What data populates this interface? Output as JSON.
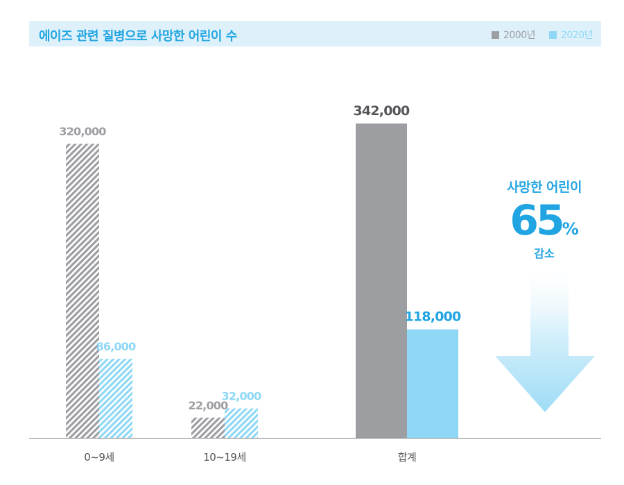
{
  "title": "에이즈 관련 질병으로 사망한 어린이 수",
  "legend": [
    {
      "label": "2000년",
      "color": "#9d9ea2"
    },
    {
      "label": "2020년",
      "color": "#8fd8f5"
    }
  ],
  "callout": {
    "line1": "사망한 어린이",
    "value": "65",
    "unit": "%",
    "line3": "감소"
  },
  "chart_data": {
    "type": "bar",
    "categories": [
      "0~9세",
      "10~19세",
      "합계"
    ],
    "series": [
      {
        "name": "2000년",
        "values": [
          320000,
          22000,
          342000
        ],
        "labels": [
          "320,000",
          "22,000",
          "342,000"
        ],
        "color": "#9d9ea2"
      },
      {
        "name": "2020년",
        "values": [
          86000,
          32000,
          118000
        ],
        "labels": [
          "86,000",
          "32,000",
          "118,000"
        ],
        "color": "#8fd8f5"
      }
    ],
    "hatched_categories": [
      "0~9세",
      "10~19세"
    ],
    "ylim": [
      0,
      342000
    ],
    "grid": false,
    "legend_position": "top-right"
  }
}
